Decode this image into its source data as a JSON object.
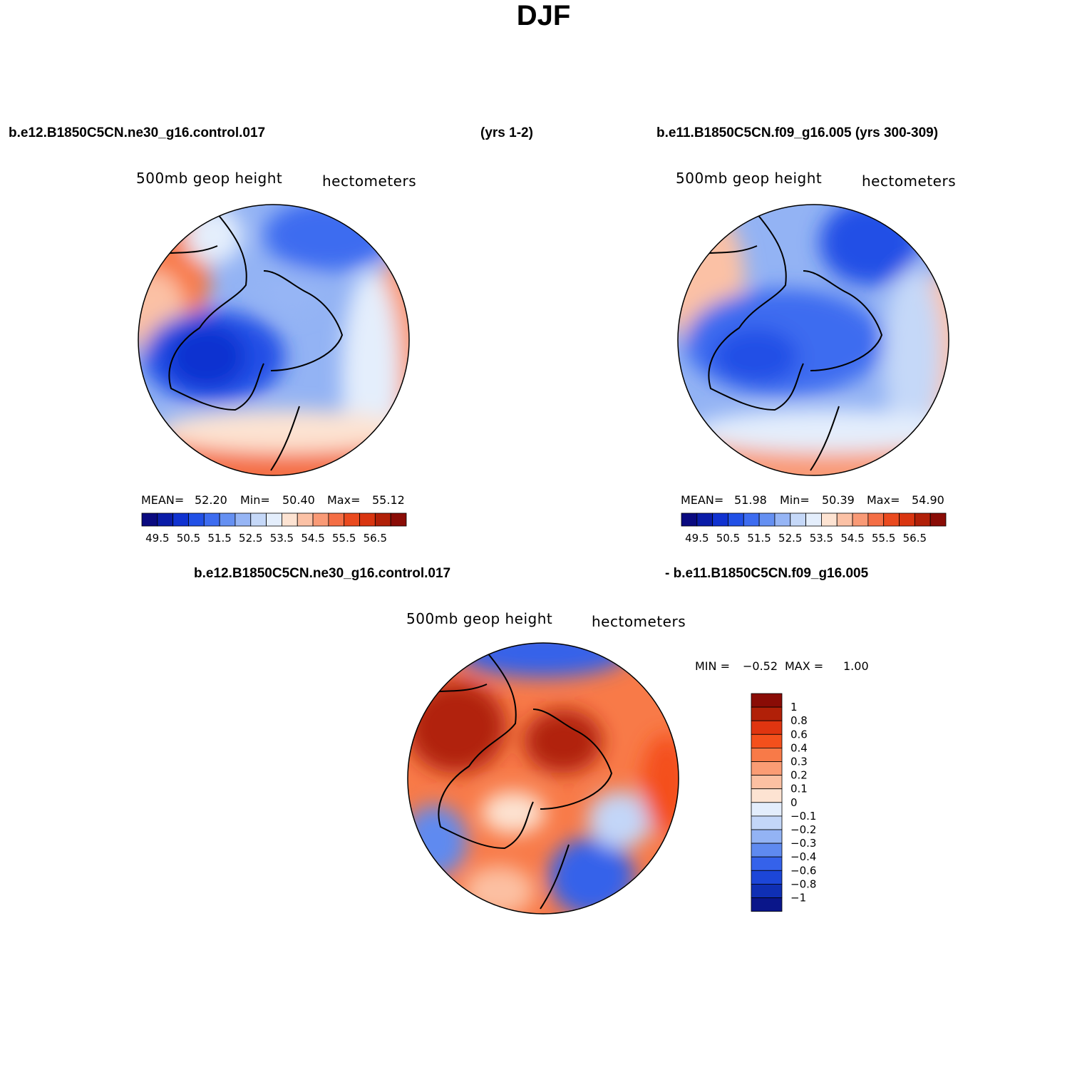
{
  "title": "DJF",
  "top_left": {
    "case": "b.e12.B1850C5CN.ne30_g16.control.017",
    "years": "(yrs 1-2)"
  },
  "top_right": {
    "case": "b.e11.B1850C5CN.f09_g16.005 (yrs 300-309)"
  },
  "bottom": {
    "case_a": "b.e12.B1850C5CN.ne30_g16.control.017",
    "case_b": "- b.e11.B1850C5CN.f09_g16.005"
  },
  "chart_data": [
    {
      "type": "heatmap",
      "projection": "north-polar-stereographic",
      "variable_label": "500mb geop height",
      "units_label": "hectometers",
      "mean_label": "MEAN=",
      "mean": "52.20",
      "min_label": "Min=",
      "min": "50.40",
      "max_label": "Max=",
      "max": "55.12",
      "colorbar_ticks": [
        "49.5",
        "50.5",
        "51.5",
        "52.5",
        "53.5",
        "54.5",
        "55.5",
        "56.5"
      ],
      "contour_levels": [
        49.5,
        50,
        50.5,
        51,
        51.5,
        52,
        52.5,
        53,
        53.5,
        54,
        54.5,
        55,
        55.5,
        56,
        56.5
      ],
      "colorbar_orientation": "horizontal"
    },
    {
      "type": "heatmap",
      "projection": "north-polar-stereographic",
      "variable_label": "500mb geop height",
      "units_label": "hectometers",
      "mean_label": "MEAN=",
      "mean": "51.98",
      "min_label": "Min=",
      "min": "50.39",
      "max_label": "Max=",
      "max": "54.90",
      "colorbar_ticks": [
        "49.5",
        "50.5",
        "51.5",
        "52.5",
        "53.5",
        "54.5",
        "55.5",
        "56.5"
      ],
      "contour_levels": [
        49.5,
        50,
        50.5,
        51,
        51.5,
        52,
        52.5,
        53,
        53.5,
        54,
        54.5,
        55,
        55.5,
        56,
        56.5
      ],
      "colorbar_orientation": "horizontal"
    },
    {
      "type": "heatmap",
      "projection": "north-polar-stereographic",
      "variable_label": "500mb geop height",
      "units_label": "hectometers",
      "min_label": "MIN =",
      "min": "−0.52",
      "max_label": "MAX =",
      "max": "1.00",
      "colorbar_ticks": [
        "1",
        "0.8",
        "0.6",
        "0.4",
        "0.3",
        "0.2",
        "0.1",
        "0",
        "−0.1",
        "−0.2",
        "−0.3",
        "−0.4",
        "−0.6",
        "−0.8",
        "−1"
      ],
      "contour_levels": [
        1,
        0.8,
        0.6,
        0.4,
        0.3,
        0.2,
        0.1,
        0,
        -0.1,
        -0.2,
        -0.3,
        -0.4,
        -0.6,
        -0.8,
        -1
      ],
      "colorbar_orientation": "vertical"
    }
  ],
  "colors": {
    "absolute_scale": [
      "#0a0a80",
      "#0a1ca8",
      "#1032d0",
      "#2150e6",
      "#3d6cf0",
      "#6590f2",
      "#96b5f5",
      "#c5d8f8",
      "#e4eefc",
      "#fde3d2",
      "#fbc1a5",
      "#f99a76",
      "#f46e45",
      "#ea4a1f",
      "#d93510",
      "#b12008",
      "#8a0c06"
    ],
    "diff_scale_top_to_bottom": [
      "#8a0c06",
      "#b12008",
      "#e03510",
      "#f4501c",
      "#f87a48",
      "#fb9c74",
      "#fcc0a2",
      "#fde3d2",
      "#e3edfc",
      "#c3d6f8",
      "#93b3f4",
      "#5f8af0",
      "#3562ea",
      "#1c46d8",
      "#0f2fb4",
      "#0a168a"
    ]
  }
}
